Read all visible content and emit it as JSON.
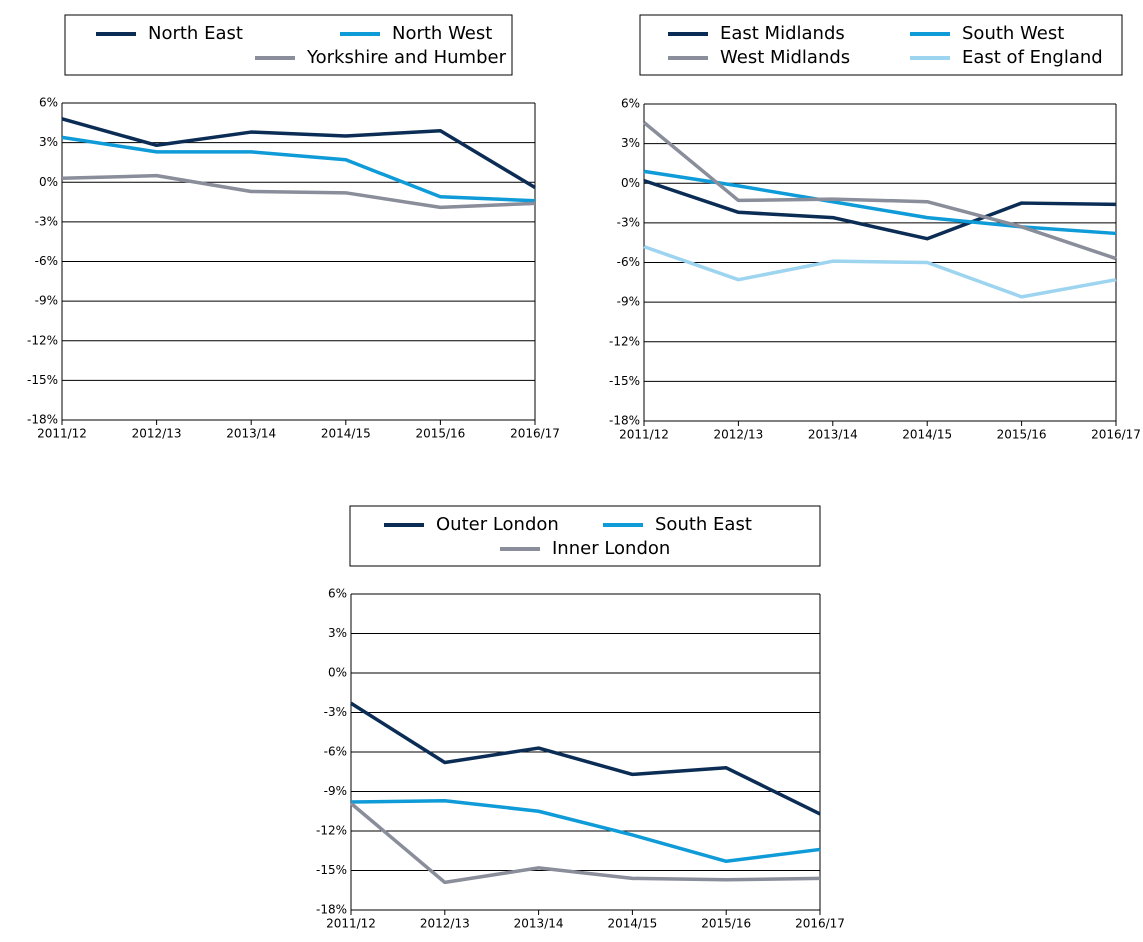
{
  "chart_data": [
    {
      "type": "line",
      "categories": [
        "2011/12",
        "2012/13",
        "2013/14",
        "2014/15",
        "2015/16",
        "2016/17"
      ],
      "series": [
        {
          "name": "North East",
          "color": "#0b2d55",
          "values": [
            4.8,
            2.8,
            3.8,
            3.5,
            3.9,
            -0.4
          ]
        },
        {
          "name": "North West",
          "color": "#0f9bd7",
          "values": [
            3.4,
            2.3,
            2.3,
            1.7,
            -1.1,
            -1.4
          ]
        },
        {
          "name": "Yorkshire and Humber",
          "color": "#8a8d9a",
          "values": [
            0.3,
            0.5,
            -0.7,
            -0.8,
            -1.9,
            -1.6
          ]
        }
      ],
      "ylim": [
        -18,
        6
      ],
      "yticks": [
        {
          "value": -18,
          "label": "-18%"
        },
        {
          "value": -15,
          "label": "-15%"
        },
        {
          "value": -12,
          "label": "-12%"
        },
        {
          "value": -9,
          "label": "-9%"
        },
        {
          "value": -6,
          "label": "-6%"
        },
        {
          "value": -3,
          "label": "-3%"
        },
        {
          "value": 0,
          "label": "0%"
        },
        {
          "value": 3,
          "label": "3%"
        },
        {
          "value": 6,
          "label": "6%"
        }
      ],
      "grid": true,
      "legend": "top"
    },
    {
      "type": "line",
      "categories": [
        "2011/12",
        "2012/13",
        "2013/14",
        "2014/15",
        "2015/16",
        "2016/17"
      ],
      "series": [
        {
          "name": "East Midlands",
          "color": "#0b2d55",
          "values": [
            0.2,
            -2.2,
            -2.6,
            -4.2,
            -1.5,
            -1.6
          ]
        },
        {
          "name": "South West",
          "color": "#0f9bd7",
          "values": [
            0.9,
            -0.2,
            -1.4,
            -2.6,
            -3.3,
            -3.8
          ]
        },
        {
          "name": "West Midlands",
          "color": "#8a8d9a",
          "values": [
            4.6,
            -1.3,
            -1.2,
            -1.4,
            -3.3,
            -5.7
          ]
        },
        {
          "name": "East of England",
          "color": "#9dd4f0",
          "values": [
            -4.8,
            -7.3,
            -5.9,
            -6.0,
            -8.6,
            -7.3
          ]
        }
      ],
      "ylim": [
        -18,
        6
      ],
      "yticks": [
        {
          "value": -18,
          "label": "-18%"
        },
        {
          "value": -15,
          "label": "-15%"
        },
        {
          "value": -12,
          "label": "-12%"
        },
        {
          "value": -9,
          "label": "-9%"
        },
        {
          "value": -6,
          "label": "-6%"
        },
        {
          "value": -3,
          "label": "-3%"
        },
        {
          "value": 0,
          "label": "0%"
        },
        {
          "value": 3,
          "label": "3%"
        },
        {
          "value": 6,
          "label": "6%"
        }
      ],
      "grid": true,
      "legend": "top"
    },
    {
      "type": "line",
      "categories": [
        "2011/12",
        "2012/13",
        "2013/14",
        "2014/15",
        "2015/16",
        "2016/17"
      ],
      "series": [
        {
          "name": "Outer London",
          "color": "#0b2d55",
          "values": [
            -2.3,
            -6.8,
            -5.7,
            -7.7,
            -7.2,
            -10.7
          ]
        },
        {
          "name": "South East",
          "color": "#0f9bd7",
          "values": [
            -9.8,
            -9.7,
            -10.5,
            -12.3,
            -14.3,
            -13.4
          ]
        },
        {
          "name": "Inner London",
          "color": "#8a8d9a",
          "values": [
            -9.9,
            -15.9,
            -14.8,
            -15.6,
            -15.7,
            -15.6
          ]
        }
      ],
      "ylim": [
        -18,
        6
      ],
      "yticks": [
        {
          "value": -18,
          "label": "-18%"
        },
        {
          "value": -15,
          "label": "-15%"
        },
        {
          "value": -12,
          "label": "-12%"
        },
        {
          "value": -9,
          "label": "-9%"
        },
        {
          "value": -6,
          "label": "-6%"
        },
        {
          "value": -3,
          "label": "-3%"
        },
        {
          "value": 0,
          "label": "0%"
        },
        {
          "value": 3,
          "label": "3%"
        },
        {
          "value": 6,
          "label": "6%"
        }
      ],
      "grid": true,
      "legend": "top"
    }
  ]
}
